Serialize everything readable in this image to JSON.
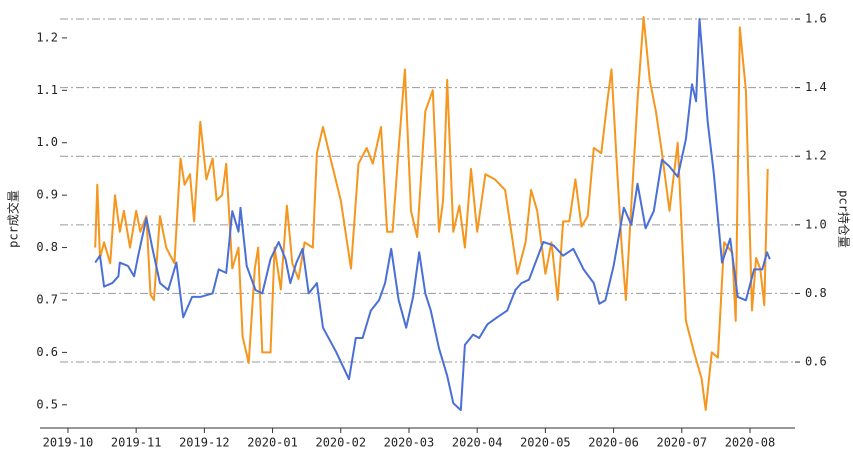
{
  "chart_data": {
    "type": "line",
    "ylabel": "pcr成交量",
    "y2label": "pcr持仓量",
    "xlim": [
      -0.41,
      10.66
    ],
    "xticks": [
      {
        "value": 0,
        "label": "2019-10"
      },
      {
        "value": 1,
        "label": "2019-11"
      },
      {
        "value": 2,
        "label": "2019-12"
      },
      {
        "value": 3,
        "label": "2020-01"
      },
      {
        "value": 4,
        "label": "2020-02"
      },
      {
        "value": 5,
        "label": "2020-03"
      },
      {
        "value": 6,
        "label": "2020-04"
      },
      {
        "value": 7,
        "label": "2020-05"
      },
      {
        "value": 8,
        "label": "2020-06"
      },
      {
        "value": 9,
        "label": "2020-07"
      },
      {
        "value": 10,
        "label": "2020-08"
      }
    ],
    "ylim": [
      0.471,
      1.238
    ],
    "yticks": [
      0.5,
      0.6,
      0.7,
      0.8,
      0.9,
      {
        "value": 1,
        "label": "1.0"
      },
      1.1,
      1.2
    ],
    "y2lim": [
      0.431,
      1.603
    ],
    "y2ticks": [
      0.6,
      0.8,
      {
        "value": 1,
        "label": "1.0"
      },
      1.2,
      1.4,
      1.6
    ],
    "grid": "y2",
    "series": [
      {
        "color": "#f5961e",
        "axis": "y",
        "x": [
          0.4,
          0.43,
          0.47,
          0.53,
          0.62,
          0.69,
          0.76,
          0.82,
          0.91,
          1.0,
          1.06,
          1.15,
          1.21,
          1.26,
          1.35,
          1.44,
          1.56,
          1.65,
          1.71,
          1.79,
          1.85,
          1.94,
          2.03,
          2.12,
          2.18,
          2.26,
          2.32,
          2.41,
          2.5,
          2.56,
          2.65,
          2.74,
          2.79,
          2.85,
          2.97,
          3.03,
          3.12,
          3.21,
          3.29,
          3.38,
          3.47,
          3.59,
          3.65,
          3.74,
          3.85,
          4.0,
          4.15,
          4.26,
          4.38,
          4.47,
          4.59,
          4.68,
          4.76,
          4.85,
          4.94,
          5.03,
          5.12,
          5.24,
          5.35,
          5.44,
          5.5,
          5.56,
          5.65,
          5.74,
          5.82,
          5.91,
          6.0,
          6.12,
          6.26,
          6.41,
          6.5,
          6.59,
          6.71,
          6.79,
          6.88,
          7.0,
          7.09,
          7.18,
          7.26,
          7.35,
          7.44,
          7.53,
          7.62,
          7.71,
          7.82,
          7.91,
          7.97,
          8.06,
          8.12,
          8.18,
          8.26,
          8.35,
          8.44,
          8.53,
          8.62,
          8.71,
          8.82,
          8.94,
          9.06,
          9.18,
          9.29,
          9.35,
          9.44,
          9.53,
          9.62,
          9.74,
          9.79,
          9.85,
          9.94,
          10.03,
          10.09,
          10.15,
          10.21,
          10.26
        ],
        "values": [
          0.8,
          0.92,
          0.78,
          0.81,
          0.77,
          0.9,
          0.83,
          0.87,
          0.8,
          0.87,
          0.83,
          0.86,
          0.71,
          0.7,
          0.86,
          0.8,
          0.77,
          0.97,
          0.92,
          0.94,
          0.85,
          1.04,
          0.93,
          0.97,
          0.89,
          0.9,
          0.96,
          0.76,
          0.8,
          0.63,
          0.58,
          0.76,
          0.8,
          0.6,
          0.6,
          0.8,
          0.72,
          0.88,
          0.77,
          0.74,
          0.81,
          0.8,
          0.98,
          1.03,
          0.97,
          0.89,
          0.76,
          0.96,
          0.99,
          0.96,
          1.03,
          0.83,
          0.83,
          0.99,
          1.14,
          0.87,
          0.82,
          1.06,
          1.1,
          0.83,
          0.89,
          1.12,
          0.83,
          0.88,
          0.8,
          0.95,
          0.83,
          0.94,
          0.93,
          0.91,
          0.83,
          0.75,
          0.81,
          0.91,
          0.87,
          0.75,
          0.81,
          0.7,
          0.85,
          0.85,
          0.93,
          0.84,
          0.86,
          0.99,
          0.98,
          1.08,
          1.14,
          0.93,
          0.8,
          0.7,
          0.88,
          1.08,
          1.24,
          1.12,
          1.06,
          0.98,
          0.87,
          1.0,
          0.66,
          0.6,
          0.55,
          0.49,
          0.6,
          0.59,
          0.81,
          0.79,
          0.66,
          1.22,
          1.1,
          0.68,
          0.78,
          0.76,
          0.69,
          0.95
        ]
      },
      {
        "color": "#4a6fd6",
        "axis": "y2",
        "x": [
          0.4,
          0.47,
          0.53,
          0.65,
          0.74,
          0.76,
          0.88,
          0.97,
          1.03,
          1.15,
          1.24,
          1.35,
          1.47,
          1.59,
          1.69,
          1.82,
          1.94,
          2.12,
          2.21,
          2.32,
          2.41,
          2.5,
          2.53,
          2.62,
          2.75,
          2.85,
          2.97,
          3.09,
          3.19,
          3.26,
          3.35,
          3.44,
          3.53,
          3.65,
          3.74,
          3.93,
          4.12,
          4.22,
          4.32,
          4.44,
          4.56,
          4.65,
          4.74,
          4.85,
          4.96,
          5.06,
          5.15,
          5.24,
          5.32,
          5.44,
          5.56,
          5.65,
          5.76,
          5.82,
          5.94,
          6.03,
          6.15,
          6.29,
          6.44,
          6.56,
          6.65,
          6.76,
          6.97,
          7.12,
          7.26,
          7.41,
          7.56,
          7.71,
          7.79,
          7.88,
          8.0,
          8.15,
          8.26,
          8.35,
          8.47,
          8.59,
          8.71,
          8.82,
          8.94,
          9.06,
          9.15,
          9.21,
          9.26,
          9.38,
          9.47,
          9.59,
          9.71,
          9.82,
          9.94,
          10.06,
          10.18,
          10.25,
          10.29
        ],
        "values": [
          0.89,
          0.91,
          0.82,
          0.83,
          0.85,
          0.89,
          0.88,
          0.85,
          0.91,
          1.02,
          0.93,
          0.83,
          0.81,
          0.89,
          0.73,
          0.79,
          0.79,
          0.8,
          0.87,
          0.86,
          1.04,
          0.98,
          1.05,
          0.88,
          0.81,
          0.8,
          0.9,
          0.95,
          0.9,
          0.83,
          0.89,
          0.93,
          0.8,
          0.83,
          0.7,
          0.63,
          0.55,
          0.67,
          0.67,
          0.75,
          0.78,
          0.83,
          0.93,
          0.78,
          0.7,
          0.79,
          0.92,
          0.8,
          0.75,
          0.64,
          0.56,
          0.48,
          0.46,
          0.65,
          0.68,
          0.67,
          0.71,
          0.73,
          0.75,
          0.81,
          0.83,
          0.84,
          0.95,
          0.94,
          0.91,
          0.93,
          0.87,
          0.83,
          0.77,
          0.78,
          0.88,
          1.05,
          1.0,
          1.12,
          0.99,
          1.04,
          1.19,
          1.17,
          1.14,
          1.25,
          1.41,
          1.36,
          1.6,
          1.3,
          1.15,
          0.89,
          0.96,
          0.79,
          0.78,
          0.87,
          0.87,
          0.92,
          0.9
        ]
      }
    ]
  }
}
